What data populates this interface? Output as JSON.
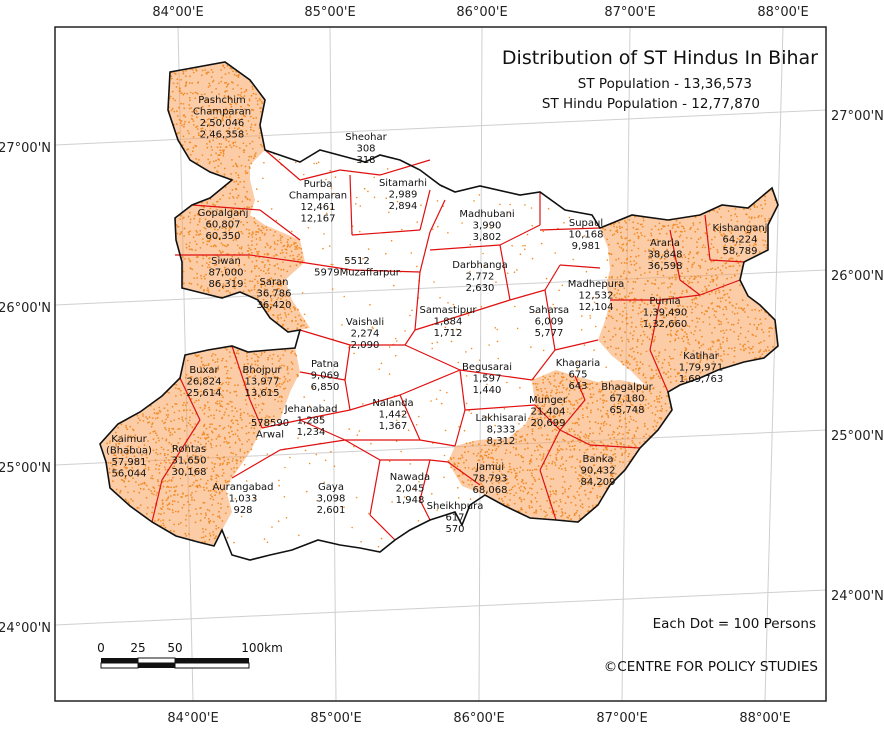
{
  "map": {
    "title": "Distribution of ST Hindus In Bihar",
    "st_population": "ST Population - 13,36,573",
    "st_hindu_population": "ST Hindu Population - 12,77,870",
    "dot_legend": "Each Dot = 100 Persons",
    "credit": "©CENTRE FOR POLICY STUDIES",
    "colors": {
      "dot": "#f28c28",
      "shade": "#f7a35c",
      "state_border": "#111111",
      "district_border": "#e01010",
      "graticule": "#cfcfcf",
      "frame": "#222222"
    },
    "scale_bar": {
      "labels": [
        "0",
        "25",
        "50",
        "100km"
      ]
    },
    "axes": {
      "top": [
        "84°00'E",
        "85°00'E",
        "86°00'E",
        "87°00'E",
        "88°00'E"
      ],
      "bottom": [
        "84°00'E",
        "85°00'E",
        "86°00'E",
        "87°00'E",
        "88°00'E"
      ],
      "left": [
        "27°00'N",
        "26°00'N",
        "25°00'N",
        "24°00'N"
      ],
      "right": [
        "27°00'N",
        "26°00'N",
        "25°00'N",
        "24°00'N"
      ]
    },
    "districts": [
      {
        "name": "Pashchim Champaran",
        "lines": [
          "Pashchim",
          "Champaran",
          "2,50,046",
          "2,46,358"
        ],
        "shaded": true
      },
      {
        "name": "Sheohar",
        "lines": [
          "Sheohar",
          "308",
          "318"
        ],
        "shaded": false
      },
      {
        "name": "Sitamarhi",
        "lines": [
          "Sitamarhi",
          "2,989",
          "2,894"
        ],
        "shaded": false
      },
      {
        "name": "Purba Champaran",
        "lines": [
          "Purba",
          "Champaran",
          "12,461",
          "12,167"
        ],
        "shaded": false
      },
      {
        "name": "Gopalganj",
        "lines": [
          "Gopalganj",
          "60,807",
          "60,350"
        ],
        "shaded": true
      },
      {
        "name": "Siwan",
        "lines": [
          "Siwan",
          "87,000",
          "86,319"
        ],
        "shaded": true
      },
      {
        "name": "Muzaffarpur",
        "lines": [
          "5512",
          "5979Muzaffarpur"
        ],
        "shaded": false
      },
      {
        "name": "Saran",
        "lines": [
          "Saran",
          "36,786",
          "36,420"
        ],
        "shaded": true
      },
      {
        "name": "Vaishali",
        "lines": [
          "Vaishali",
          "2,274",
          "2,090"
        ],
        "shaded": false
      },
      {
        "name": "Samastipur",
        "lines": [
          "Samastipur",
          "1,884",
          "1,712"
        ],
        "shaded": false
      },
      {
        "name": "Madhubani",
        "lines": [
          "Madhubani",
          "3,990",
          "3,802"
        ],
        "shaded": false
      },
      {
        "name": "Darbhanga",
        "lines": [
          "Darbhanga",
          "2,772",
          "2,630"
        ],
        "shaded": false
      },
      {
        "name": "Supaul",
        "lines": [
          "Supaul",
          "10,168",
          "9,981"
        ],
        "shaded": false
      },
      {
        "name": "Araria",
        "lines": [
          "Araria",
          "38,848",
          "36,598"
        ],
        "shaded": true
      },
      {
        "name": "Kishanganj",
        "lines": [
          "Kishanganj",
          "64,224",
          "58,789"
        ],
        "shaded": true
      },
      {
        "name": "Madhepura",
        "lines": [
          "Madhepura",
          "12,532",
          "12,104"
        ],
        "shaded": false
      },
      {
        "name": "Saharsa",
        "lines": [
          "Saharsa",
          "6,009",
          "5,777"
        ],
        "shaded": false
      },
      {
        "name": "Purnia",
        "lines": [
          "Purnia",
          "1,39,490",
          "1,32,660"
        ],
        "shaded": true
      },
      {
        "name": "Katihar",
        "lines": [
          "Katihar",
          "1,79,971",
          "1,69,763"
        ],
        "shaded": true
      },
      {
        "name": "Buxar",
        "lines": [
          "Buxar",
          "26,824",
          "25,614"
        ],
        "shaded": true
      },
      {
        "name": "Bhojpur",
        "lines": [
          "Bhojpur",
          "13,977",
          "13,615"
        ],
        "shaded": false
      },
      {
        "name": "Patna",
        "lines": [
          "Patna",
          "9,069",
          "6,850"
        ],
        "shaded": false
      },
      {
        "name": "Begusarai",
        "lines": [
          "Begusarai",
          "1,597",
          "1,440"
        ],
        "shaded": false
      },
      {
        "name": "Khagaria",
        "lines": [
          "Khagaria",
          "675",
          "643"
        ],
        "shaded": false
      },
      {
        "name": "Bhagalpur",
        "lines": [
          "Bhagalpur",
          "67,180",
          "65,748"
        ],
        "shaded": true
      },
      {
        "name": "Munger",
        "lines": [
          "Munger",
          "21,404",
          "20,699"
        ],
        "shaded": true
      },
      {
        "name": "Nalanda",
        "lines": [
          "Nalanda",
          "1,442",
          "1,367"
        ],
        "shaded": false
      },
      {
        "name": "Lakhisarai",
        "lines": [
          "Lakhisarai",
          "8,333",
          "8,312"
        ],
        "shaded": true
      },
      {
        "name": "Kaimur (Bhabua)",
        "lines": [
          "Kaimur",
          "(Bhabua)",
          "57,981",
          "56,044"
        ],
        "shaded": true
      },
      {
        "name": "Rohtas",
        "lines": [
          "Rohtas",
          "31,650",
          "30,168"
        ],
        "shaded": true
      },
      {
        "name": "Arwal",
        "lines": [
          "578590",
          "Arwal"
        ],
        "shaded": false
      },
      {
        "name": "Jehanabad",
        "lines": [
          "Jehanabad",
          "1,285",
          "1,234"
        ],
        "shaded": false
      },
      {
        "name": "Jamui",
        "lines": [
          "Jamui",
          "78,793",
          "68,068"
        ],
        "shaded": true
      },
      {
        "name": "Banka",
        "lines": [
          "Banka",
          "90,432",
          "84,209"
        ],
        "shaded": true
      },
      {
        "name": "Aurangabad",
        "lines": [
          "Aurangabad",
          "1,033",
          "928"
        ],
        "shaded": false
      },
      {
        "name": "Gaya",
        "lines": [
          "Gaya",
          "3,098",
          "2,601"
        ],
        "shaded": false
      },
      {
        "name": "Nawada",
        "lines": [
          "Nawada",
          "2,045",
          "1,948"
        ],
        "shaded": false
      },
      {
        "name": "Sheikhpura",
        "lines": [
          "Sheikhpura",
          "617",
          "570"
        ],
        "shaded": false
      }
    ]
  }
}
